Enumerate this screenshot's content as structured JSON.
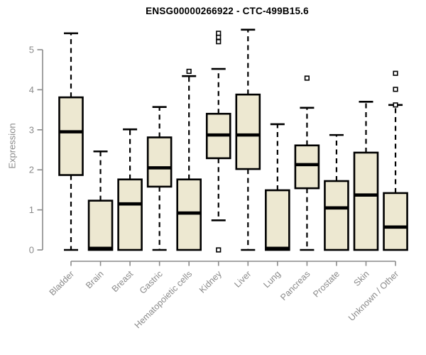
{
  "title": "ENSG00000266922 - CTC-499B15.6",
  "chart_data": {
    "type": "boxplot",
    "title": "ENSG00000266922 - CTC-499B15.6",
    "xlabel": "",
    "ylabel": "Expression",
    "ylim": [
      0,
      5.5
    ],
    "yticks": [
      0,
      1,
      2,
      3,
      4,
      5
    ],
    "grid": false,
    "legend": "none",
    "categories": [
      "Bladder",
      "Brain",
      "Breast",
      "Gastric",
      "Hematopoietic cells",
      "Kidney",
      "Liver",
      "Lung",
      "Pancreas",
      "Prostate",
      "Skin",
      "Unknown / Other"
    ],
    "series": [
      {
        "name": "Bladder",
        "whisker_low": 0,
        "q1": 1.87,
        "median": 2.95,
        "q3": 3.81,
        "whisker_high": 5.41,
        "outliers": []
      },
      {
        "name": "Brain",
        "whisker_low": 0,
        "q1": 0,
        "median": 0.04,
        "q3": 1.23,
        "whisker_high": 2.46,
        "outliers": []
      },
      {
        "name": "Breast",
        "whisker_low": 0,
        "q1": 0,
        "median": 1.15,
        "q3": 1.76,
        "whisker_high": 3.01,
        "outliers": []
      },
      {
        "name": "Gastric",
        "whisker_low": 0,
        "q1": 1.58,
        "median": 2.05,
        "q3": 2.81,
        "whisker_high": 3.57,
        "outliers": []
      },
      {
        "name": "Hematopoietic cells",
        "whisker_low": 0,
        "q1": 0,
        "median": 0.92,
        "q3": 1.76,
        "whisker_high": 4.34,
        "outliers": [
          4.46
        ]
      },
      {
        "name": "Kidney",
        "whisker_low": 0.74,
        "q1": 2.29,
        "median": 2.87,
        "q3": 3.4,
        "whisker_high": 4.52,
        "outliers": [
          5.41,
          5.31,
          5.2,
          0.0
        ]
      },
      {
        "name": "Liver",
        "whisker_low": 0,
        "q1": 2.02,
        "median": 2.87,
        "q3": 3.88,
        "whisker_high": 5.5,
        "outliers": []
      },
      {
        "name": "Lung",
        "whisker_low": 0,
        "q1": 0,
        "median": 0.04,
        "q3": 1.49,
        "whisker_high": 3.14,
        "outliers": []
      },
      {
        "name": "Pancreas",
        "whisker_low": 0,
        "q1": 1.54,
        "median": 2.13,
        "q3": 2.61,
        "whisker_high": 3.55,
        "outliers": [
          4.29
        ]
      },
      {
        "name": "Prostate",
        "whisker_low": 0,
        "q1": 0,
        "median": 1.05,
        "q3": 1.72,
        "whisker_high": 2.87,
        "outliers": []
      },
      {
        "name": "Skin",
        "whisker_low": 0,
        "q1": 0,
        "median": 1.37,
        "q3": 2.43,
        "whisker_high": 3.7,
        "outliers": []
      },
      {
        "name": "Unknown / Other",
        "whisker_low": 0,
        "q1": 0,
        "median": 0.57,
        "q3": 1.42,
        "whisker_high": 3.62,
        "outliers": [
          4.41,
          4.01,
          3.62
        ]
      }
    ],
    "colors": {
      "box_fill": "#ede8d1",
      "box_border": "#000000",
      "median": "#000000",
      "whisker": "#000000",
      "outlier_border": "#000000",
      "axis": "#8a8a8a",
      "tick_label": "#8a8a8a",
      "title": "#000000",
      "background": "#ffffff"
    }
  }
}
